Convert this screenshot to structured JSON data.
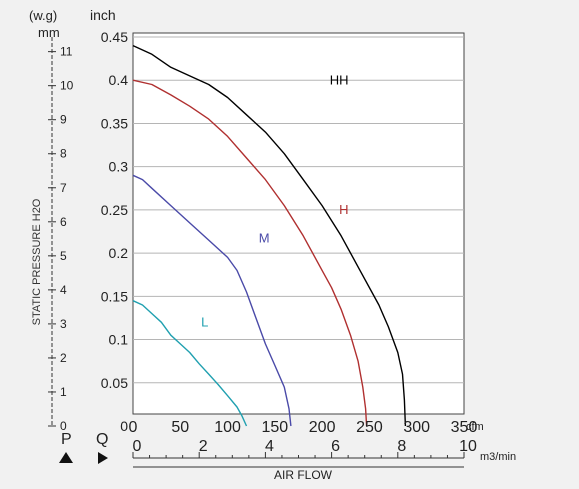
{
  "chart_data": {
    "type": "line",
    "ylabel": "STATIC PRESSURE H2O",
    "xlabel": "AIR FLOW",
    "units": {
      "p_axis_unit_top": "(w.g)",
      "p_axis_unit": "mm",
      "inch_axis_unit": "inch",
      "cfm_unit": "cfm",
      "m3_unit": "m3/min"
    },
    "axis_markers": {
      "p": "P",
      "q": "Q"
    },
    "x_cfm": {
      "range": [
        0,
        350
      ],
      "ticks": [
        0,
        50,
        100,
        150,
        200,
        250,
        300,
        350
      ],
      "labels": [
        "0",
        "50",
        "100",
        "150",
        "200",
        "250",
        "300",
        "350"
      ]
    },
    "x_m3": {
      "range": [
        0,
        10
      ],
      "ticks": [
        0,
        2,
        4,
        6,
        8,
        10
      ],
      "labels": [
        "0",
        "2",
        "4",
        "6",
        "8",
        "10"
      ],
      "minor_step": 0.5
    },
    "y_inch": {
      "range": [
        0,
        0.45
      ],
      "ticks": [
        0,
        0.05,
        0.1,
        0.15,
        0.2,
        0.25,
        0.3,
        0.35,
        0.4,
        0.45
      ],
      "labels": [
        "0",
        "0.05",
        "0.1",
        "0.15",
        "0.2",
        "0.25",
        "0.3",
        "0.35",
        "0.4",
        "0.45"
      ]
    },
    "y_mm": {
      "range": [
        0,
        11.43
      ],
      "ticks": [
        0,
        1,
        2,
        3,
        4,
        5,
        6,
        7,
        8,
        9,
        10,
        11
      ],
      "labels": [
        "0",
        "1",
        "2",
        "3",
        "4",
        "5",
        "6",
        "7",
        "8",
        "9",
        "10",
        "11"
      ]
    },
    "grid": {
      "horizontal": true,
      "vertical": false
    },
    "series": [
      {
        "name": "HH",
        "color": "#000000",
        "label_at": [
          208,
          0.395
        ],
        "points": [
          [
            0,
            0.44
          ],
          [
            20,
            0.43
          ],
          [
            40,
            0.415
          ],
          [
            60,
            0.405
          ],
          [
            80,
            0.395
          ],
          [
            100,
            0.38
          ],
          [
            120,
            0.36
          ],
          [
            140,
            0.34
          ],
          [
            160,
            0.315
          ],
          [
            180,
            0.285
          ],
          [
            200,
            0.255
          ],
          [
            220,
            0.22
          ],
          [
            240,
            0.18
          ],
          [
            260,
            0.14
          ],
          [
            270,
            0.115
          ],
          [
            280,
            0.085
          ],
          [
            285,
            0.06
          ],
          [
            287,
            0.03
          ],
          [
            288,
            0.0
          ]
        ]
      },
      {
        "name": "H",
        "color": "#b03030",
        "label_at": [
          218,
          0.245
        ],
        "points": [
          [
            0,
            0.4
          ],
          [
            20,
            0.395
          ],
          [
            40,
            0.383
          ],
          [
            60,
            0.37
          ],
          [
            80,
            0.355
          ],
          [
            100,
            0.335
          ],
          [
            120,
            0.31
          ],
          [
            140,
            0.285
          ],
          [
            160,
            0.255
          ],
          [
            180,
            0.22
          ],
          [
            200,
            0.18
          ],
          [
            210,
            0.16
          ],
          [
            220,
            0.135
          ],
          [
            230,
            0.105
          ],
          [
            238,
            0.075
          ],
          [
            243,
            0.045
          ],
          [
            246,
            0.02
          ],
          [
            247,
            0.0
          ]
        ]
      },
      {
        "name": "M",
        "color": "#4a4aa8",
        "label_at": [
          133,
          0.212
        ],
        "points": [
          [
            0,
            0.29
          ],
          [
            10,
            0.285
          ],
          [
            20,
            0.275
          ],
          [
            40,
            0.255
          ],
          [
            60,
            0.235
          ],
          [
            80,
            0.215
          ],
          [
            100,
            0.195
          ],
          [
            110,
            0.18
          ],
          [
            120,
            0.155
          ],
          [
            130,
            0.125
          ],
          [
            140,
            0.095
          ],
          [
            150,
            0.07
          ],
          [
            160,
            0.045
          ],
          [
            165,
            0.02
          ],
          [
            167,
            0.0
          ]
        ]
      },
      {
        "name": "L",
        "color": "#20a0b0",
        "label_at": [
          72,
          0.115
        ],
        "points": [
          [
            0,
            0.145
          ],
          [
            10,
            0.14
          ],
          [
            20,
            0.13
          ],
          [
            30,
            0.12
          ],
          [
            40,
            0.105
          ],
          [
            50,
            0.095
          ],
          [
            60,
            0.085
          ],
          [
            70,
            0.072
          ],
          [
            80,
            0.06
          ],
          [
            90,
            0.048
          ],
          [
            100,
            0.035
          ],
          [
            110,
            0.022
          ],
          [
            115,
            0.012
          ],
          [
            120,
            0.0
          ]
        ]
      }
    ]
  }
}
